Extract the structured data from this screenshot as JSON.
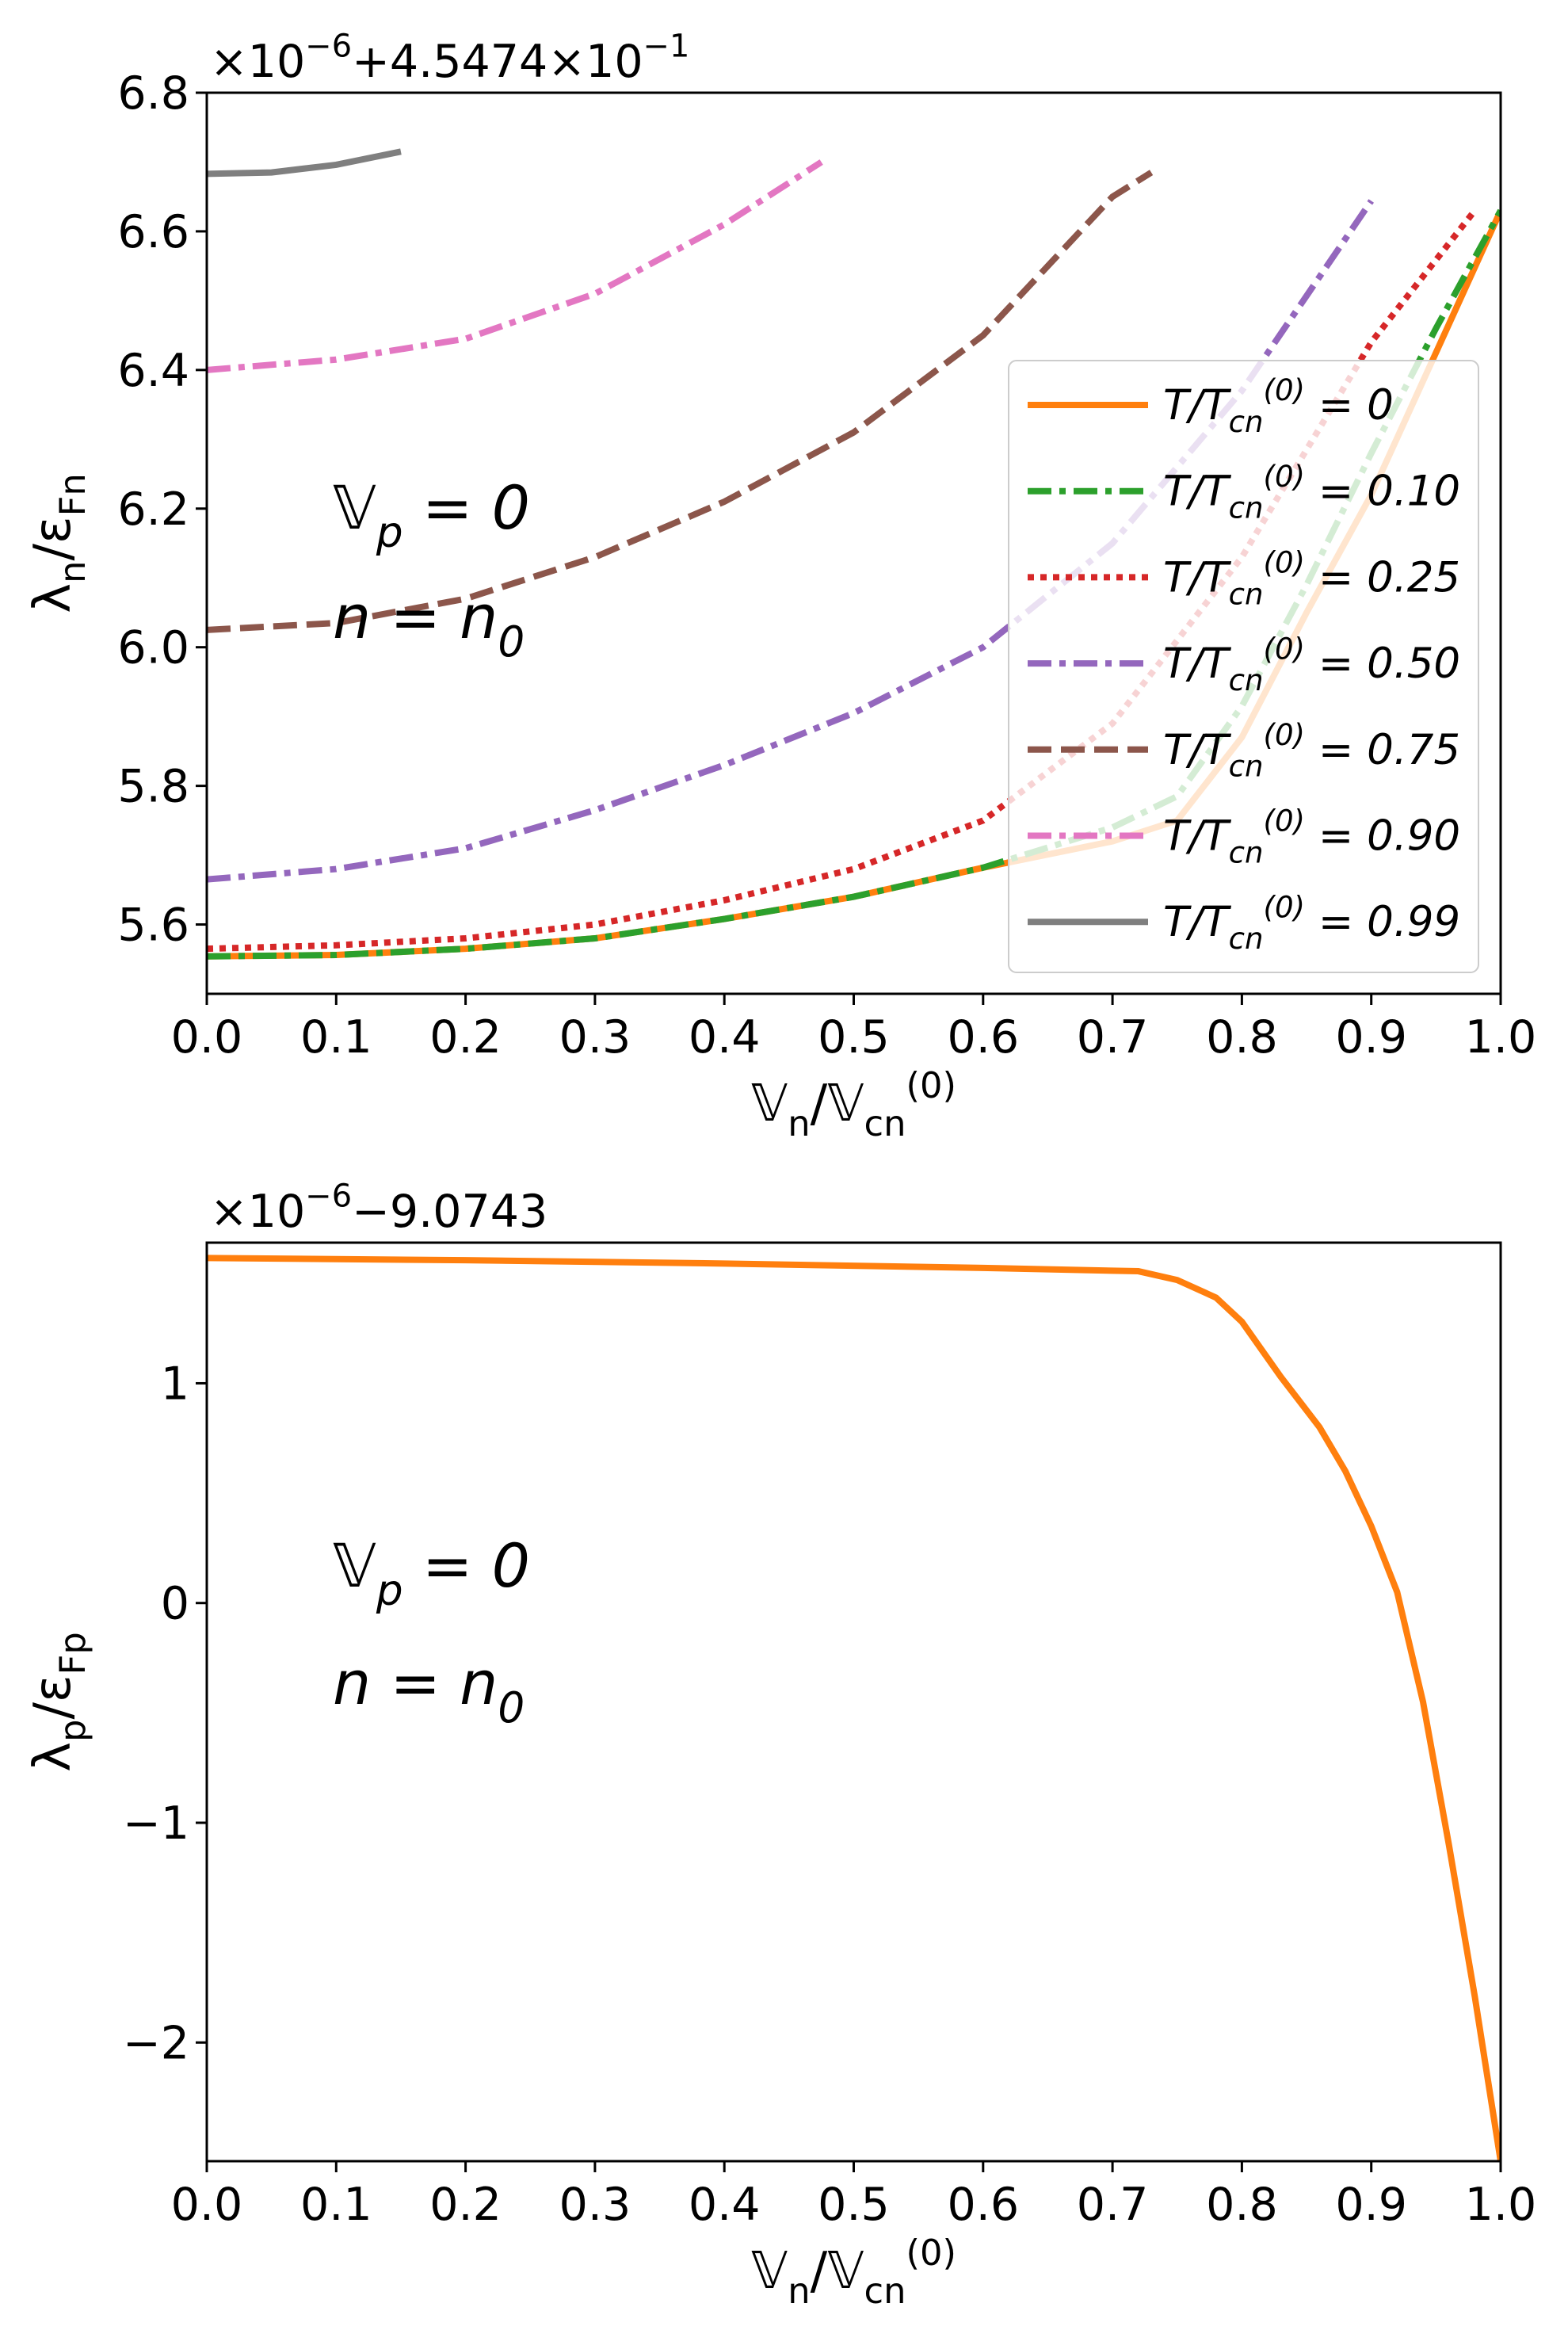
{
  "chart_data": [
    {
      "type": "line",
      "offset_text": "×10−6+4.5474×10−1",
      "xlabel": "𝕍n/𝕍cn(0)",
      "ylabel": "λn/εFn",
      "annotations": [
        "𝕍p = 0",
        "n = n0"
      ],
      "legend": "center right",
      "xlim": [
        0,
        1
      ],
      "ylim": [
        5.5,
        6.8
      ],
      "xticks": [
        {
          "value": 0,
          "label": "0.0"
        },
        0.1,
        0.2,
        0.3,
        0.4,
        0.5,
        0.6,
        0.7,
        0.8,
        0.9,
        {
          "value": 1,
          "label": "1.0"
        }
      ],
      "yticks": [
        5.6,
        5.8,
        {
          "value": 6,
          "label": "6.0"
        },
        6.2,
        6.4,
        6.6,
        6.8
      ],
      "series": [
        {
          "name": "T/Tcn(0) = 0",
          "color": "#ff7f0e",
          "linestyle": "solid",
          "x": [
            0,
            0.1,
            0.2,
            0.3,
            0.4,
            0.5,
            0.6,
            0.7,
            0.75,
            0.8,
            0.85,
            0.9,
            0.95,
            1.0
          ],
          "values": [
            5.554,
            5.556,
            5.565,
            5.58,
            5.608,
            5.64,
            5.682,
            5.72,
            5.75,
            5.87,
            6.05,
            6.22,
            6.425,
            6.63
          ]
        },
        {
          "name": "T/Tcn(0) = 0.10",
          "color": "#2ca02c",
          "linestyle": "dashdot",
          "x": [
            0,
            0.1,
            0.2,
            0.3,
            0.4,
            0.5,
            0.6,
            0.7,
            0.75,
            0.8,
            0.85,
            0.9,
            0.95,
            1.0
          ],
          "values": [
            5.554,
            5.556,
            5.565,
            5.58,
            5.608,
            5.64,
            5.682,
            5.74,
            5.785,
            5.915,
            6.09,
            6.28,
            6.46,
            6.63
          ]
        },
        {
          "name": "T/Tcn(0) = 0.25",
          "color": "#d62728",
          "linestyle": "dotted",
          "x": [
            0,
            0.1,
            0.2,
            0.3,
            0.4,
            0.5,
            0.6,
            0.7,
            0.8,
            0.9,
            0.98
          ],
          "values": [
            5.565,
            5.57,
            5.58,
            5.6,
            5.635,
            5.68,
            5.75,
            5.89,
            6.13,
            6.44,
            6.63
          ]
        },
        {
          "name": "T/Tcn(0) = 0.50",
          "color": "#9467bd",
          "linestyle": "dashdot",
          "x": [
            0,
            0.1,
            0.2,
            0.3,
            0.4,
            0.5,
            0.6,
            0.7,
            0.8,
            0.9
          ],
          "values": [
            5.665,
            5.68,
            5.71,
            5.765,
            5.83,
            5.905,
            6.0,
            6.15,
            6.37,
            6.644
          ]
        },
        {
          "name": "T/Tcn(0) = 0.75",
          "color": "#8c564b",
          "linestyle": "dashed",
          "x": [
            0,
            0.1,
            0.2,
            0.3,
            0.4,
            0.5,
            0.6,
            0.7,
            0.73
          ],
          "values": [
            6.025,
            6.035,
            6.07,
            6.13,
            6.21,
            6.31,
            6.45,
            6.65,
            6.685
          ]
        },
        {
          "name": "T/Tcn(0) = 0.90",
          "color": "#e377c2",
          "linestyle": "dashdot",
          "x": [
            0,
            0.1,
            0.2,
            0.3,
            0.4,
            0.475
          ],
          "values": [
            6.4,
            6.415,
            6.445,
            6.51,
            6.61,
            6.7
          ]
        },
        {
          "name": "T/Tcn(0) = 0.99",
          "color": "#7f7f7f",
          "linestyle": "solid",
          "x": [
            0,
            0.05,
            0.1,
            0.15
          ],
          "values": [
            6.683,
            6.685,
            6.696,
            6.715
          ]
        }
      ]
    },
    {
      "type": "line",
      "offset_text": "×10−6−9.0743",
      "xlabel": "𝕍n/𝕍cn(0)",
      "ylabel": "λp/εFp",
      "annotations": [
        "𝕍p = 0",
        "n = n0"
      ],
      "xlim": [
        0,
        1
      ],
      "ylim": [
        -2.54,
        1.64
      ],
      "xticks": [
        {
          "value": 0,
          "label": "0.0"
        },
        0.1,
        0.2,
        0.3,
        0.4,
        0.5,
        0.6,
        0.7,
        0.8,
        0.9,
        {
          "value": 1,
          "label": "1.0"
        }
      ],
      "yticks": [
        {
          "value": -2,
          "label": "−2"
        },
        {
          "value": -1,
          "label": "−1"
        },
        0,
        1
      ],
      "series": [
        {
          "color": "#ff7f0e",
          "linestyle": "solid",
          "x": [
            0,
            0.2,
            0.4,
            0.6,
            0.72,
            0.75,
            0.78,
            0.8,
            0.83,
            0.86,
            0.88,
            0.9,
            0.92,
            0.94,
            0.96,
            0.98,
            1.0
          ],
          "values": [
            1.57,
            1.56,
            1.545,
            1.525,
            1.51,
            1.47,
            1.39,
            1.28,
            1.03,
            0.8,
            0.6,
            0.35,
            0.05,
            -0.45,
            -1.1,
            -1.79,
            -2.54
          ]
        }
      ]
    }
  ]
}
